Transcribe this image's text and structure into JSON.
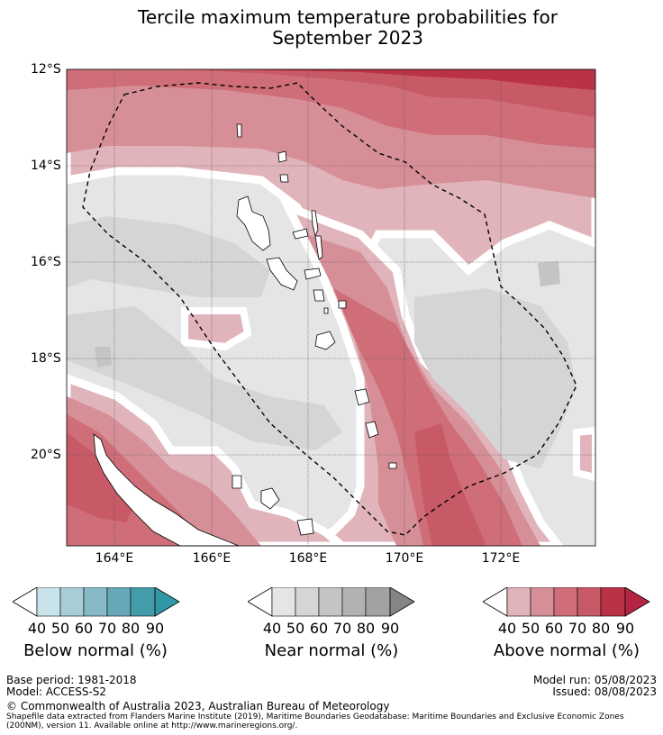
{
  "title_line1": "Tercile maximum temperature probabilities for",
  "title_line2": "September 2023",
  "lat_labels": [
    "12°S",
    "14°S",
    "16°S",
    "18°S",
    "20°S"
  ],
  "lon_labels": [
    "164°E",
    "166°E",
    "168°E",
    "170°E",
    "172°E"
  ],
  "colorbars": [
    {
      "caption": "Below normal (%)",
      "ticks": [
        "40",
        "50",
        "60",
        "70",
        "80",
        "90"
      ],
      "colors": [
        "#c8e3ea",
        "#a7cdd6",
        "#86bac6",
        "#66a8b8",
        "#429ca9"
      ],
      "extend_color": "#3298a6"
    },
    {
      "caption": "Near normal (%)",
      "ticks": [
        "40",
        "50",
        "60",
        "70",
        "80",
        "90"
      ],
      "colors": [
        "#e5e5e5",
        "#d5d5d5",
        "#c4c4c4",
        "#b2b2b2",
        "#a2a2a2"
      ],
      "extend_color": "#858585"
    },
    {
      "caption": "Above normal (%)",
      "ticks": [
        "40",
        "50",
        "60",
        "70",
        "80",
        "90"
      ],
      "colors": [
        "#e0b4ba",
        "#d68f97",
        "#cf6e78",
        "#c75a66",
        "#ba3246"
      ],
      "extend_color": "#b62444"
    }
  ],
  "footer": {
    "base_period": "Base period: 1981-2018",
    "model": "Model: ACCESS-S2",
    "model_run": "Model run: 05/08/2023",
    "issued": "Issued: 08/08/2023",
    "copyright": "© Commonwealth of Australia 2023, Australian Bureau of Meteorology",
    "shapefile_line1": "Shapefile data extracted from Flanders Marine Institute (2019), Maritime Boundaries Geodatabase: Maritime Boundaries and Exclusive Economic Zones",
    "shapefile_line2": "(200NM), version 11. Available online at http://www.marineregions.org/."
  }
}
